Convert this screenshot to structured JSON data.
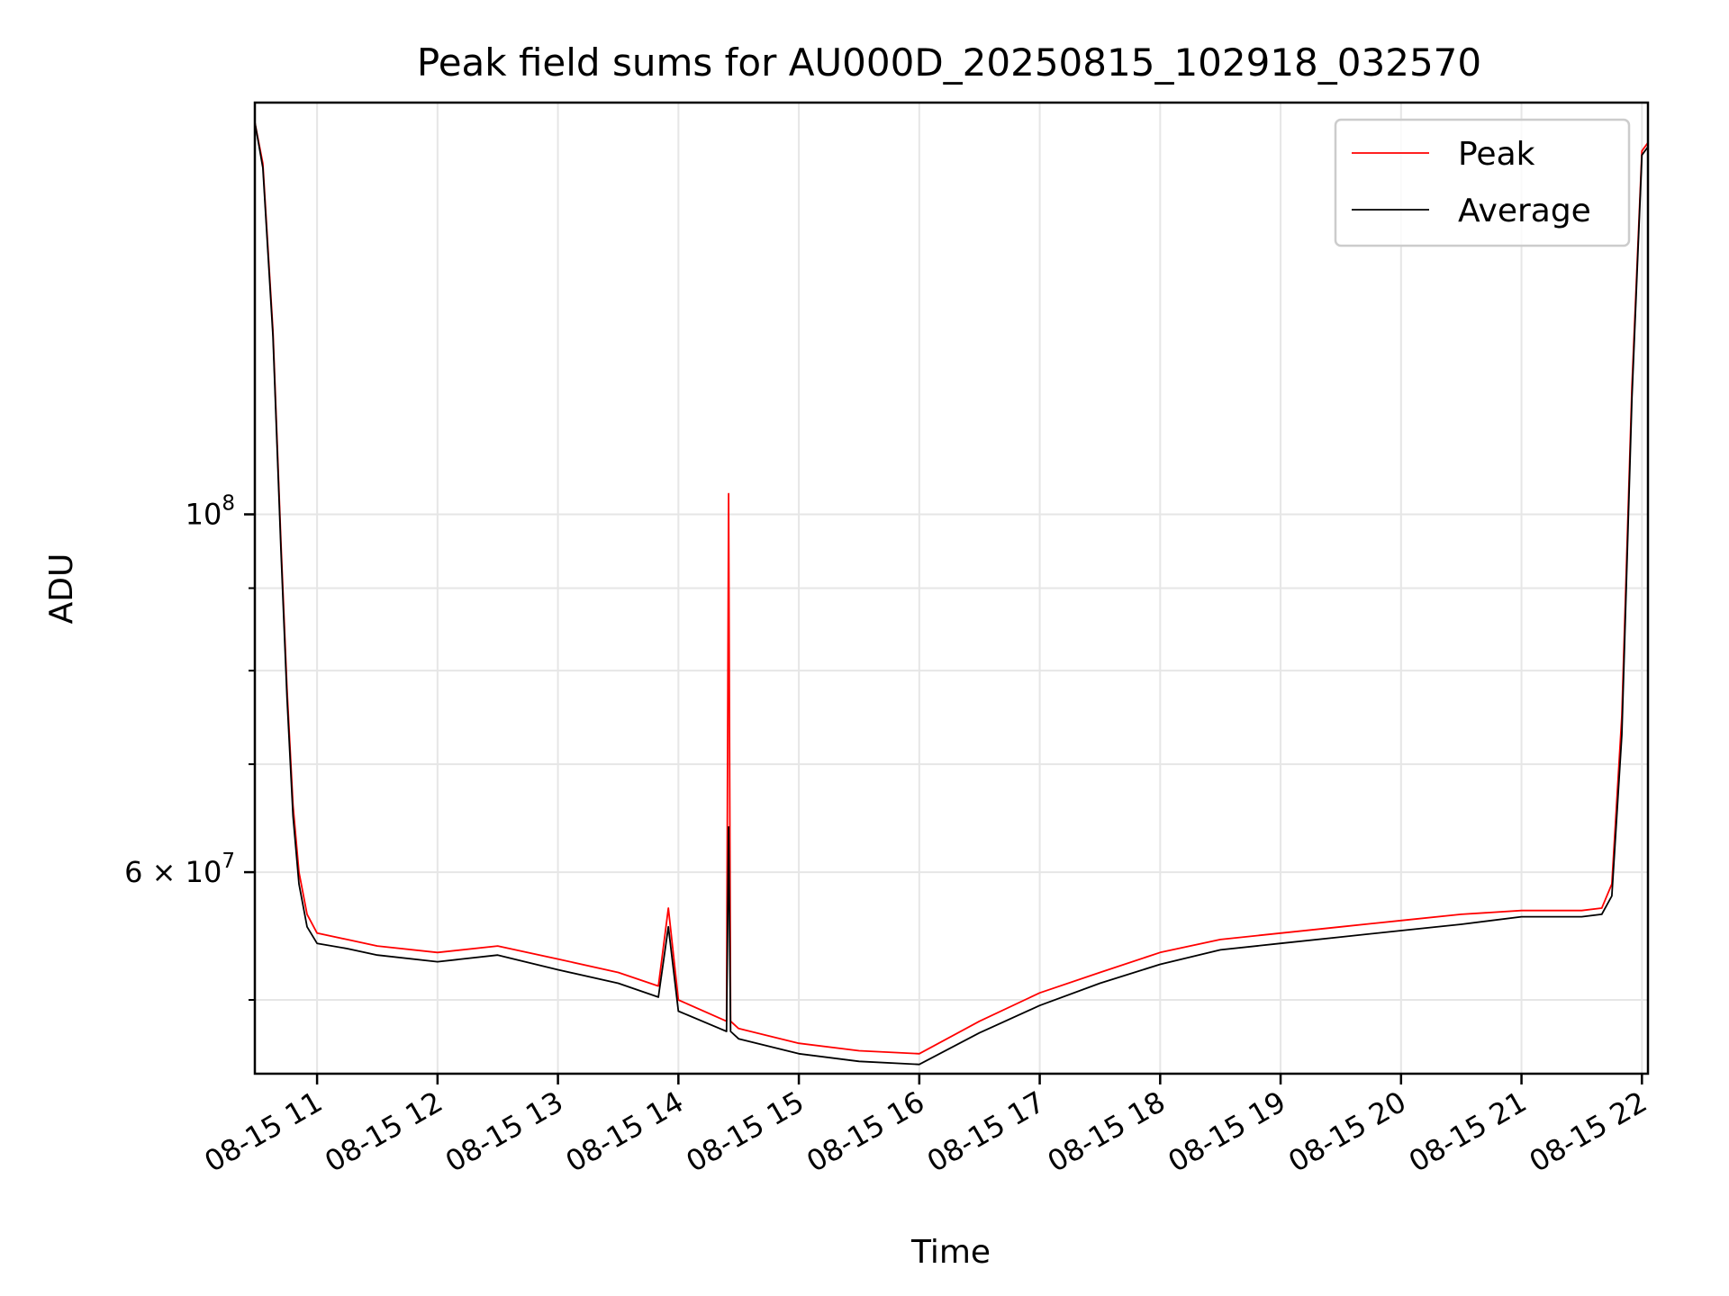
{
  "chart_data": {
    "type": "line",
    "title": "Peak field sums for AU000D_20250815_102918_032570",
    "xlabel": "Time",
    "ylabel": "ADU",
    "x_ticks": [
      "08-15 11",
      "08-15 12",
      "08-15 13",
      "08-15 14",
      "08-15 15",
      "08-15 16",
      "08-15 17",
      "08-15 18",
      "08-15 19",
      "08-15 20",
      "08-15 21",
      "08-15 22"
    ],
    "y_ticks": [
      {
        "value": 100000000,
        "base": "10",
        "exp": "8"
      },
      {
        "value": 60000000,
        "base": "6 × 10",
        "exp": "7"
      }
    ],
    "y_scale": "log",
    "xlim": [
      "2025-08-15 10:29",
      "2025-08-15 22:03"
    ],
    "ylim": [
      45000000,
      180000000
    ],
    "grid": true,
    "legend_position": "top-right",
    "series": [
      {
        "name": "Peak",
        "color": "#ff0000",
        "x": [
          "2025-08-15 10:29",
          "2025-08-15 10:33",
          "2025-08-15 10:38",
          "2025-08-15 10:42",
          "2025-08-15 10:45",
          "2025-08-15 10:48",
          "2025-08-15 10:51",
          "2025-08-15 10:55",
          "2025-08-15 11:00",
          "2025-08-15 11:15",
          "2025-08-15 11:30",
          "2025-08-15 12:00",
          "2025-08-15 12:30",
          "2025-08-15 13:00",
          "2025-08-15 13:30",
          "2025-08-15 13:50",
          "2025-08-15 13:55",
          "2025-08-15 14:00",
          "2025-08-15 14:24",
          "2025-08-15 14:25",
          "2025-08-15 14:26",
          "2025-08-15 14:30",
          "2025-08-15 15:00",
          "2025-08-15 15:30",
          "2025-08-15 16:00",
          "2025-08-15 16:30",
          "2025-08-15 17:00",
          "2025-08-15 17:30",
          "2025-08-15 18:00",
          "2025-08-15 18:30",
          "2025-08-15 19:00",
          "2025-08-15 19:30",
          "2025-08-15 20:00",
          "2025-08-15 20:30",
          "2025-08-15 21:00",
          "2025-08-15 21:30",
          "2025-08-15 21:40",
          "2025-08-15 21:45",
          "2025-08-15 21:50",
          "2025-08-15 21:55",
          "2025-08-15 22:00",
          "2025-08-15 22:03"
        ],
        "y": [
          175000000,
          165000000,
          130000000,
          96000000,
          78000000,
          66000000,
          60000000,
          56500000,
          55000000,
          54500000,
          54000000,
          53500000,
          54000000,
          53000000,
          52000000,
          51000000,
          57000000,
          50000000,
          48500000,
          103000000,
          48500000,
          48000000,
          47000000,
          46500000,
          46300000,
          48500000,
          50500000,
          52000000,
          53500000,
          54500000,
          55000000,
          55500000,
          56000000,
          56500000,
          56800000,
          56800000,
          57000000,
          59000000,
          75000000,
          120000000,
          168000000,
          170000000
        ]
      },
      {
        "name": "Average",
        "color": "#000000",
        "x": [
          "2025-08-15 10:29",
          "2025-08-15 10:33",
          "2025-08-15 10:38",
          "2025-08-15 10:42",
          "2025-08-15 10:45",
          "2025-08-15 10:48",
          "2025-08-15 10:51",
          "2025-08-15 10:55",
          "2025-08-15 11:00",
          "2025-08-15 11:15",
          "2025-08-15 11:30",
          "2025-08-15 12:00",
          "2025-08-15 12:30",
          "2025-08-15 13:00",
          "2025-08-15 13:30",
          "2025-08-15 13:50",
          "2025-08-15 13:55",
          "2025-08-15 14:00",
          "2025-08-15 14:24",
          "2025-08-15 14:25",
          "2025-08-15 14:26",
          "2025-08-15 14:30",
          "2025-08-15 15:00",
          "2025-08-15 15:30",
          "2025-08-15 16:00",
          "2025-08-15 16:30",
          "2025-08-15 17:00",
          "2025-08-15 17:30",
          "2025-08-15 18:00",
          "2025-08-15 18:30",
          "2025-08-15 19:00",
          "2025-08-15 19:30",
          "2025-08-15 20:00",
          "2025-08-15 20:30",
          "2025-08-15 21:00",
          "2025-08-15 21:30",
          "2025-08-15 21:40",
          "2025-08-15 21:45",
          "2025-08-15 21:50",
          "2025-08-15 21:55",
          "2025-08-15 22:00",
          "2025-08-15 22:03"
        ],
        "y": [
          175000000,
          164000000,
          129000000,
          95000000,
          77000000,
          65000000,
          59000000,
          55500000,
          54200000,
          53800000,
          53300000,
          52800000,
          53300000,
          52200000,
          51200000,
          50200000,
          55500000,
          49200000,
          47800000,
          64000000,
          47800000,
          47300000,
          46300000,
          45800000,
          45600000,
          47700000,
          49600000,
          51200000,
          52600000,
          53700000,
          54200000,
          54700000,
          55200000,
          55700000,
          56300000,
          56300000,
          56500000,
          58000000,
          73000000,
          118000000,
          167000000,
          169000000
        ]
      }
    ]
  }
}
